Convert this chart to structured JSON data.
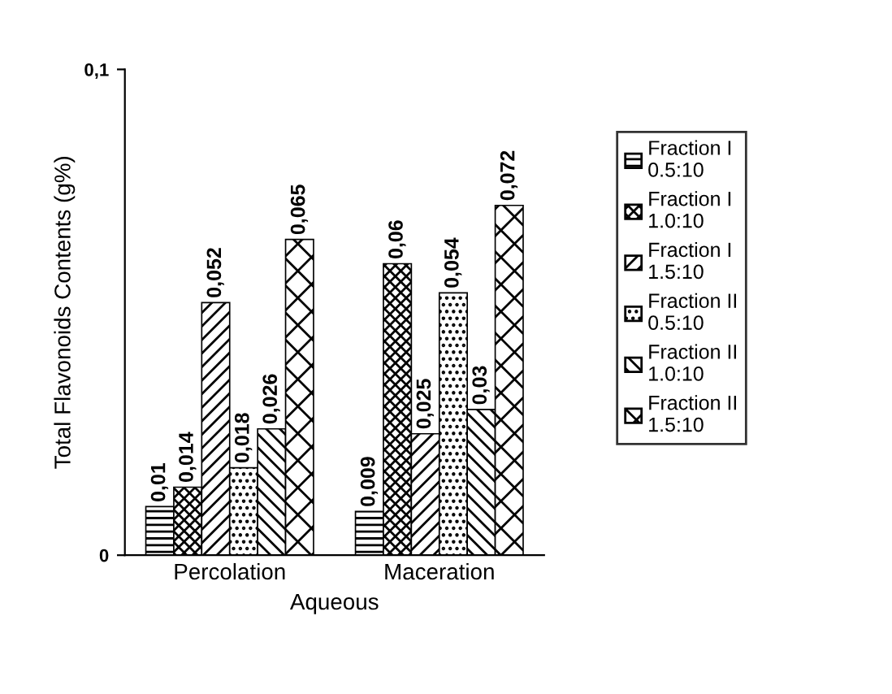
{
  "chart_data": {
    "type": "bar",
    "xlabel": "Aqueous",
    "ylabel": "Total Flavonoids Contents (g%)",
    "categories": [
      "Percolation",
      "Maceration"
    ],
    "series": [
      {
        "name": "Fraction I 0.5:10",
        "color": "#000000",
        "values": [
          0.01,
          0.009
        ],
        "value_labels": [
          "0,01",
          "0,009"
        ]
      },
      {
        "name": "Fraction I 1.0:10",
        "color": "#000000",
        "values": [
          0.014,
          0.06
        ],
        "value_labels": [
          "0,014",
          "0,06"
        ]
      },
      {
        "name": "Fraction I 1.5:10",
        "color": "#000000",
        "values": [
          0.052,
          0.025
        ],
        "value_labels": [
          "0,052",
          "0,025"
        ]
      },
      {
        "name": "Fraction II 0.5:10",
        "color": "#000000",
        "values": [
          0.018,
          0.054
        ],
        "value_labels": [
          "0,018",
          "0,054"
        ]
      },
      {
        "name": "Fraction II 1.0:10",
        "color": "#000000",
        "values": [
          0.026,
          0.03
        ],
        "value_labels": [
          "0,026",
          "0,03"
        ]
      },
      {
        "name": "Fraction II 1.5:10",
        "color": "#000000",
        "values": [
          0.065,
          0.072
        ],
        "value_labels": [
          "0,065",
          "0,072"
        ]
      }
    ],
    "ylim": [
      0,
      0.1
    ],
    "yticks": [
      {
        "value": 0,
        "label": "0"
      },
      {
        "value": 0.1,
        "label": "0,1"
      }
    ],
    "legend": "right",
    "grid": false
  }
}
